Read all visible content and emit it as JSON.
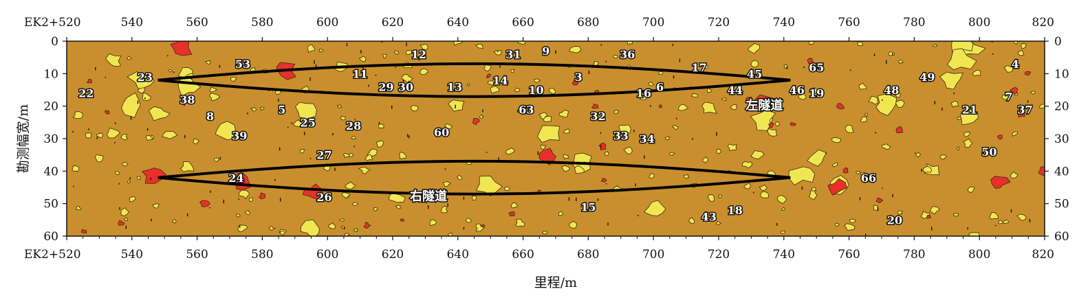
{
  "colors": {
    "background": "#C98F2E",
    "yellow_patch": "#F0E652",
    "red_patch": "#E8302A",
    "tunnel_outline": "#000000"
  },
  "chart_data": {
    "type": "heatmap",
    "xlabel": "里程/m",
    "ylabel": "勘测幅宽/m",
    "xlim": [
      520,
      820
    ],
    "ylim": [
      0,
      60
    ],
    "y_inverted": true,
    "x_ticks": [
      {
        "value": 520,
        "label": "EK2+520"
      },
      {
        "value": 540,
        "label": "540"
      },
      {
        "value": 560,
        "label": "560"
      },
      {
        "value": 580,
        "label": "580"
      },
      {
        "value": 600,
        "label": "600"
      },
      {
        "value": 620,
        "label": "620"
      },
      {
        "value": 640,
        "label": "640"
      },
      {
        "value": 660,
        "label": "660"
      },
      {
        "value": 680,
        "label": "680"
      },
      {
        "value": 700,
        "label": "700"
      },
      {
        "value": 720,
        "label": "720"
      },
      {
        "value": 740,
        "label": "740"
      },
      {
        "value": 760,
        "label": "760"
      },
      {
        "value": 780,
        "label": "780"
      },
      {
        "value": 800,
        "label": "800"
      },
      {
        "value": 820,
        "label": "820"
      }
    ],
    "y_ticks": [
      0,
      10,
      20,
      30,
      40,
      50,
      60
    ],
    "tunnels": [
      {
        "label": "左隧道",
        "x_start": 548,
        "x_end": 742,
        "y_center": 12,
        "half_height": 5,
        "label_x": 734,
        "label_y": 21
      },
      {
        "label": "右隧道",
        "x_start": 548,
        "x_end": 742,
        "y_center": 42,
        "half_height": 5,
        "label_x": 631,
        "label_y": 49
      }
    ],
    "anomaly_labels": [
      {
        "id": "53",
        "x": 574,
        "y": 7
      },
      {
        "id": "23",
        "x": 544,
        "y": 11
      },
      {
        "id": "22",
        "x": 526,
        "y": 16
      },
      {
        "id": "38",
        "x": 557,
        "y": 18
      },
      {
        "id": "8",
        "x": 564,
        "y": 23
      },
      {
        "id": "5",
        "x": 586,
        "y": 21
      },
      {
        "id": "25",
        "x": 594,
        "y": 25
      },
      {
        "id": "39",
        "x": 573,
        "y": 29
      },
      {
        "id": "28",
        "x": 608,
        "y": 26
      },
      {
        "id": "12",
        "x": 628,
        "y": 4
      },
      {
        "id": "11",
        "x": 610,
        "y": 10
      },
      {
        "id": "29",
        "x": 618,
        "y": 14
      },
      {
        "id": "30",
        "x": 624,
        "y": 14
      },
      {
        "id": "13",
        "x": 639,
        "y": 14
      },
      {
        "id": "60",
        "x": 635,
        "y": 28
      },
      {
        "id": "27",
        "x": 599,
        "y": 35
      },
      {
        "id": "24",
        "x": 572,
        "y": 42
      },
      {
        "id": "26",
        "x": 599,
        "y": 48
      },
      {
        "id": "31",
        "x": 657,
        "y": 4
      },
      {
        "id": "9",
        "x": 667,
        "y": 3
      },
      {
        "id": "14",
        "x": 653,
        "y": 12
      },
      {
        "id": "3",
        "x": 677,
        "y": 11
      },
      {
        "id": "10",
        "x": 664,
        "y": 15
      },
      {
        "id": "63",
        "x": 661,
        "y": 21
      },
      {
        "id": "36",
        "x": 692,
        "y": 4
      },
      {
        "id": "32",
        "x": 683,
        "y": 23
      },
      {
        "id": "16",
        "x": 697,
        "y": 16
      },
      {
        "id": "6",
        "x": 702,
        "y": 14
      },
      {
        "id": "33",
        "x": 690,
        "y": 29
      },
      {
        "id": "34",
        "x": 698,
        "y": 30
      },
      {
        "id": "17",
        "x": 714,
        "y": 8
      },
      {
        "id": "45",
        "x": 731,
        "y": 10
      },
      {
        "id": "44",
        "x": 725,
        "y": 15
      },
      {
        "id": "46",
        "x": 744,
        "y": 15
      },
      {
        "id": "65",
        "x": 750,
        "y": 8
      },
      {
        "id": "19",
        "x": 750,
        "y": 16
      },
      {
        "id": "15",
        "x": 680,
        "y": 51
      },
      {
        "id": "43",
        "x": 717,
        "y": 54
      },
      {
        "id": "18",
        "x": 725,
        "y": 52
      },
      {
        "id": "66",
        "x": 766,
        "y": 42
      },
      {
        "id": "20",
        "x": 774,
        "y": 55
      },
      {
        "id": "48",
        "x": 773,
        "y": 15
      },
      {
        "id": "49",
        "x": 784,
        "y": 11
      },
      {
        "id": "4",
        "x": 811,
        "y": 7
      },
      {
        "id": "7",
        "x": 809,
        "y": 17
      },
      {
        "id": "21",
        "x": 797,
        "y": 21
      },
      {
        "id": "37",
        "x": 814,
        "y": 21
      },
      {
        "id": "50",
        "x": 803,
        "y": 34
      }
    ]
  }
}
